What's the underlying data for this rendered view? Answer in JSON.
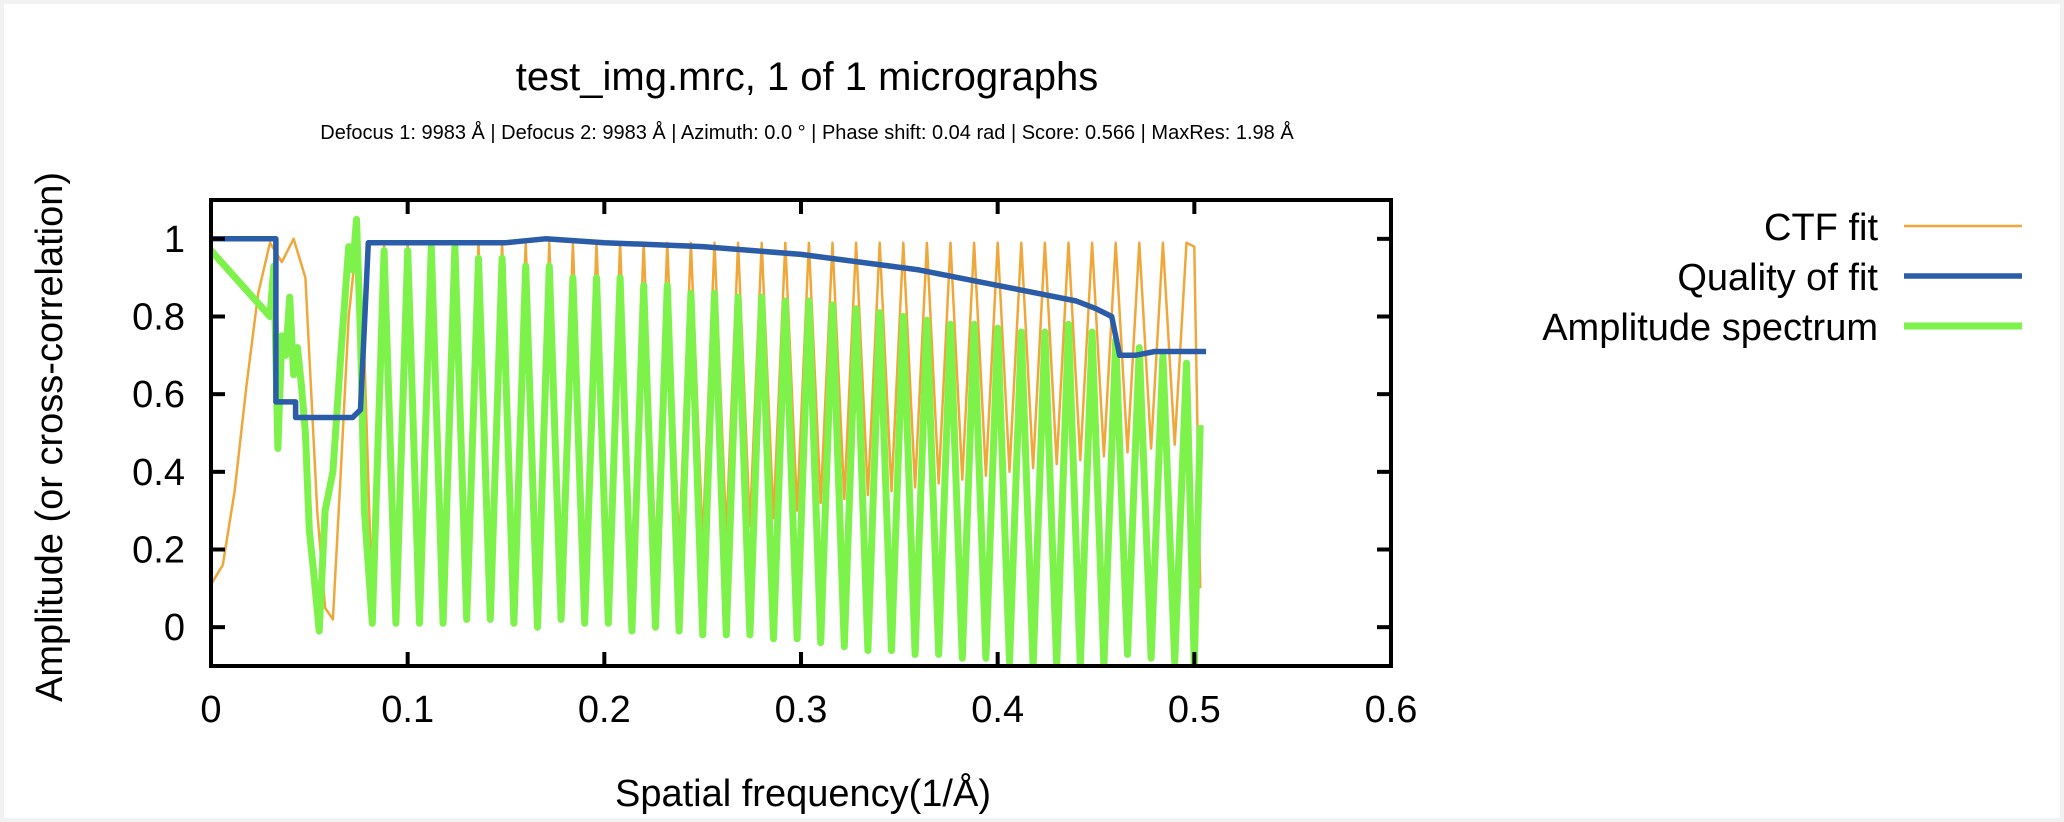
{
  "chart_data": {
    "type": "line",
    "title": "test_img.mrc, 1 of 1 micrographs",
    "subtitle": "Defocus 1: 9983 Å | Defocus 2: 9983 Å | Azimuth: 0.0 ° | Phase shift: 0.04 rad | Score: 0.566 | MaxRes: 1.98 Å",
    "xlabel": "Spatial frequency(1/Å)",
    "ylabel": "Amplitude (or cross-correlation)",
    "xlim": [
      0,
      0.6
    ],
    "ylim": [
      -0.1,
      1.1
    ],
    "xticks": [
      "0",
      "0.1",
      "0.2",
      "0.3",
      "0.4",
      "0.5",
      "0.6"
    ],
    "yticks": [
      "0",
      "0.2",
      "0.4",
      "0.6",
      "0.8",
      "1"
    ],
    "grid": false,
    "legend_position": "right",
    "colors": {
      "ctf": "#f0a73a",
      "quality": "#2a5ca8",
      "amplitude": "#7cf24a",
      "frame": "#000000"
    },
    "series": [
      {
        "name": "CTF fit",
        "color": "#f0a73a",
        "x": [
          0,
          0.006,
          0.012,
          0.018,
          0.024,
          0.03,
          0.036,
          0.042,
          0.048,
          0.054,
          0.058,
          0.062,
          0.066,
          0.07,
          0.074,
          0.078,
          0.082,
          0.088,
          0.094,
          0.1,
          0.106,
          0.112,
          0.118,
          0.124,
          0.13,
          0.136,
          0.142,
          0.148,
          0.154,
          0.16,
          0.166,
          0.172,
          0.178,
          0.184,
          0.19,
          0.196,
          0.202,
          0.208,
          0.214,
          0.22,
          0.226,
          0.232,
          0.238,
          0.244,
          0.25,
          0.256,
          0.262,
          0.268,
          0.274,
          0.28,
          0.286,
          0.292,
          0.298,
          0.304,
          0.31,
          0.316,
          0.322,
          0.328,
          0.334,
          0.34,
          0.346,
          0.352,
          0.358,
          0.364,
          0.37,
          0.376,
          0.382,
          0.388,
          0.394,
          0.4,
          0.406,
          0.412,
          0.418,
          0.424,
          0.43,
          0.436,
          0.442,
          0.448,
          0.454,
          0.46,
          0.466,
          0.472,
          0.478,
          0.484,
          0.49,
          0.496,
          0.5,
          0.503
        ],
        "y": [
          0.11,
          0.16,
          0.35,
          0.62,
          0.86,
          0.99,
          0.94,
          1.0,
          0.9,
          0.3,
          0.05,
          0.02,
          0.4,
          0.8,
          0.99,
          0.7,
          0.05,
          0.98,
          0.03,
          0.99,
          0.02,
          0.99,
          0.04,
          0.99,
          0.03,
          0.99,
          0.05,
          0.99,
          0.06,
          0.99,
          0.08,
          0.99,
          0.1,
          0.99,
          0.12,
          0.99,
          0.14,
          0.99,
          0.16,
          0.99,
          0.18,
          0.99,
          0.2,
          0.99,
          0.22,
          0.99,
          0.24,
          0.99,
          0.26,
          0.99,
          0.28,
          0.99,
          0.3,
          0.99,
          0.32,
          0.99,
          0.33,
          0.99,
          0.34,
          0.99,
          0.35,
          0.99,
          0.36,
          0.99,
          0.37,
          0.99,
          0.38,
          0.99,
          0.39,
          0.99,
          0.4,
          0.99,
          0.41,
          0.99,
          0.42,
          0.99,
          0.43,
          0.99,
          0.44,
          0.99,
          0.45,
          0.99,
          0.46,
          0.99,
          0.47,
          0.99,
          0.98,
          0.1
        ]
      },
      {
        "name": "Quality of fit",
        "color": "#2a5ca8",
        "x": [
          0,
          0.033,
          0.033,
          0.043,
          0.043,
          0.072,
          0.076,
          0.08,
          0.1,
          0.15,
          0.17,
          0.2,
          0.25,
          0.3,
          0.33,
          0.36,
          0.38,
          0.4,
          0.42,
          0.44,
          0.45,
          0.458,
          0.462,
          0.47,
          0.48,
          0.5,
          0.506
        ],
        "y": [
          1.0,
          1.0,
          0.58,
          0.58,
          0.54,
          0.54,
          0.56,
          0.99,
          0.99,
          0.99,
          1.0,
          0.99,
          0.98,
          0.96,
          0.94,
          0.92,
          0.9,
          0.88,
          0.86,
          0.84,
          0.82,
          0.8,
          0.7,
          0.7,
          0.71,
          0.71,
          0.71
        ]
      },
      {
        "name": "Amplitude spectrum",
        "color": "#7cf24a",
        "x": [
          0,
          0.03,
          0.032,
          0.034,
          0.036,
          0.038,
          0.04,
          0.042,
          0.044,
          0.046,
          0.048,
          0.05,
          0.052,
          0.055,
          0.058,
          0.062,
          0.066,
          0.07,
          0.072,
          0.074,
          0.076,
          0.078,
          0.082,
          0.088,
          0.094,
          0.1,
          0.106,
          0.112,
          0.118,
          0.124,
          0.13,
          0.136,
          0.142,
          0.148,
          0.154,
          0.16,
          0.166,
          0.172,
          0.178,
          0.184,
          0.19,
          0.196,
          0.202,
          0.208,
          0.214,
          0.22,
          0.226,
          0.232,
          0.238,
          0.244,
          0.25,
          0.256,
          0.262,
          0.268,
          0.274,
          0.28,
          0.286,
          0.292,
          0.298,
          0.304,
          0.31,
          0.316,
          0.322,
          0.328,
          0.334,
          0.34,
          0.346,
          0.352,
          0.358,
          0.364,
          0.37,
          0.376,
          0.382,
          0.388,
          0.394,
          0.4,
          0.406,
          0.412,
          0.418,
          0.424,
          0.43,
          0.436,
          0.442,
          0.448,
          0.454,
          0.46,
          0.466,
          0.472,
          0.478,
          0.484,
          0.49,
          0.496,
          0.5,
          0.503
        ],
        "y": [
          0.97,
          0.8,
          0.93,
          0.46,
          0.75,
          0.7,
          0.85,
          0.65,
          0.72,
          0.62,
          0.5,
          0.25,
          0.15,
          -0.01,
          0.3,
          0.4,
          0.7,
          0.98,
          0.92,
          1.05,
          0.75,
          0.3,
          0.01,
          0.97,
          0.01,
          0.97,
          0.01,
          0.98,
          0.01,
          0.98,
          0.02,
          0.95,
          0.02,
          0.95,
          0.01,
          0.93,
          0.0,
          0.93,
          0.02,
          0.9,
          0.01,
          0.9,
          0.01,
          0.9,
          -0.01,
          0.88,
          0.0,
          0.88,
          -0.01,
          0.86,
          -0.02,
          0.86,
          -0.02,
          0.85,
          -0.02,
          0.85,
          -0.03,
          0.84,
          -0.03,
          0.84,
          -0.04,
          0.83,
          -0.05,
          0.82,
          -0.06,
          0.81,
          -0.06,
          0.8,
          -0.07,
          0.79,
          -0.07,
          0.78,
          -0.08,
          0.78,
          -0.08,
          0.77,
          -0.09,
          0.76,
          -0.1,
          0.76,
          -0.1,
          0.78,
          -0.1,
          0.76,
          -0.1,
          0.74,
          -0.07,
          0.72,
          -0.08,
          0.7,
          -0.09,
          0.68,
          -0.1,
          0.52
        ]
      }
    ]
  }
}
